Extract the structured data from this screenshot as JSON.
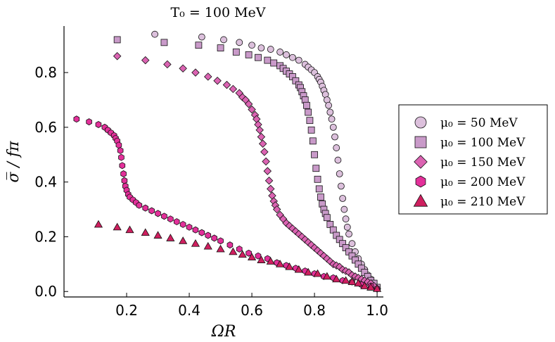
{
  "chart_data": {
    "type": "scatter",
    "title": "T₀ = 100 MeV",
    "xlabel": "ΩR",
    "ylabel": "σ̅ / fπ",
    "xlim": [
      0.0,
      1.02
    ],
    "ylim": [
      -0.02,
      0.97
    ],
    "xticks": [
      0.2,
      0.4,
      0.6,
      0.8,
      1.0
    ],
    "xtick_labels": [
      "0.2",
      "0.4",
      "0.6",
      "0.8",
      "1.0"
    ],
    "yticks": [
      0.0,
      0.2,
      0.4,
      0.6,
      0.8
    ],
    "ytick_labels": [
      "0.0",
      "0.2",
      "0.4",
      "0.6",
      "0.8"
    ],
    "grid": false,
    "legend_position": "right",
    "series": [
      {
        "name": "μ₀ = 50 MeV",
        "marker": "circle",
        "color": "#dcc0dc",
        "x": [
          0.29,
          0.44,
          0.51,
          0.56,
          0.6,
          0.63,
          0.66,
          0.69,
          0.71,
          0.73,
          0.75,
          0.77,
          0.78,
          0.79,
          0.8,
          0.81,
          0.815,
          0.82,
          0.825,
          0.83,
          0.835,
          0.84,
          0.845,
          0.85,
          0.855,
          0.86,
          0.865,
          0.87,
          0.875,
          0.88,
          0.885,
          0.89,
          0.895,
          0.9,
          0.905,
          0.91,
          0.92,
          0.93,
          0.94,
          0.95,
          0.96,
          0.97,
          0.98,
          0.99,
          1.0
        ],
        "y": [
          0.94,
          0.93,
          0.92,
          0.91,
          0.9,
          0.89,
          0.885,
          0.875,
          0.865,
          0.855,
          0.845,
          0.83,
          0.82,
          0.81,
          0.8,
          0.785,
          0.775,
          0.765,
          0.75,
          0.735,
          0.72,
          0.7,
          0.68,
          0.655,
          0.63,
          0.6,
          0.565,
          0.525,
          0.48,
          0.43,
          0.385,
          0.34,
          0.3,
          0.265,
          0.235,
          0.21,
          0.175,
          0.145,
          0.12,
          0.1,
          0.08,
          0.06,
          0.045,
          0.03,
          0.015
        ]
      },
      {
        "name": "μ₀ = 100 MeV",
        "marker": "square",
        "color": "#c99ac9",
        "x": [
          0.17,
          0.32,
          0.43,
          0.5,
          0.55,
          0.59,
          0.62,
          0.65,
          0.67,
          0.69,
          0.7,
          0.71,
          0.72,
          0.73,
          0.74,
          0.75,
          0.755,
          0.76,
          0.765,
          0.77,
          0.775,
          0.78,
          0.785,
          0.79,
          0.795,
          0.8,
          0.805,
          0.81,
          0.815,
          0.82,
          0.825,
          0.83,
          0.835,
          0.84,
          0.85,
          0.86,
          0.87,
          0.88,
          0.89,
          0.9,
          0.91,
          0.92,
          0.93,
          0.94,
          0.95,
          0.96,
          0.97,
          0.98,
          0.99,
          1.0
        ],
        "y": [
          0.92,
          0.91,
          0.9,
          0.89,
          0.875,
          0.865,
          0.855,
          0.845,
          0.835,
          0.825,
          0.815,
          0.805,
          0.795,
          0.785,
          0.77,
          0.755,
          0.745,
          0.73,
          0.715,
          0.7,
          0.68,
          0.655,
          0.625,
          0.59,
          0.55,
          0.5,
          0.45,
          0.41,
          0.375,
          0.345,
          0.32,
          0.3,
          0.285,
          0.27,
          0.245,
          0.225,
          0.205,
          0.19,
          0.175,
          0.16,
          0.145,
          0.13,
          0.115,
          0.1,
          0.085,
          0.07,
          0.055,
          0.04,
          0.03,
          0.015
        ]
      },
      {
        "name": "μ₀ = 150 MeV",
        "marker": "diamond",
        "color": "#db63b2",
        "x": [
          0.17,
          0.26,
          0.33,
          0.38,
          0.42,
          0.46,
          0.49,
          0.52,
          0.54,
          0.56,
          0.57,
          0.58,
          0.59,
          0.6,
          0.61,
          0.615,
          0.62,
          0.625,
          0.63,
          0.635,
          0.64,
          0.645,
          0.65,
          0.655,
          0.66,
          0.665,
          0.67,
          0.675,
          0.68,
          0.69,
          0.7,
          0.71,
          0.72,
          0.73,
          0.74,
          0.75,
          0.76,
          0.77,
          0.78,
          0.79,
          0.8,
          0.81,
          0.82,
          0.83,
          0.84,
          0.85,
          0.86,
          0.87,
          0.88,
          0.89,
          0.9,
          0.91,
          0.92,
          0.93,
          0.94,
          0.95,
          0.96,
          0.97,
          0.98,
          0.99,
          1.0
        ],
        "y": [
          0.86,
          0.845,
          0.83,
          0.815,
          0.8,
          0.785,
          0.77,
          0.755,
          0.74,
          0.725,
          0.71,
          0.7,
          0.685,
          0.665,
          0.645,
          0.63,
          0.61,
          0.59,
          0.565,
          0.54,
          0.51,
          0.475,
          0.44,
          0.405,
          0.375,
          0.35,
          0.33,
          0.315,
          0.3,
          0.28,
          0.265,
          0.25,
          0.24,
          0.23,
          0.22,
          0.21,
          0.2,
          0.19,
          0.18,
          0.17,
          0.16,
          0.15,
          0.14,
          0.13,
          0.12,
          0.11,
          0.1,
          0.095,
          0.09,
          0.08,
          0.075,
          0.07,
          0.06,
          0.055,
          0.05,
          0.045,
          0.04,
          0.035,
          0.03,
          0.02,
          0.01
        ]
      },
      {
        "name": "μ₀ = 200 MeV",
        "marker": "hexagon",
        "color": "#e3309a",
        "x": [
          0.04,
          0.08,
          0.11,
          0.13,
          0.14,
          0.15,
          0.16,
          0.165,
          0.17,
          0.175,
          0.18,
          0.183,
          0.186,
          0.19,
          0.193,
          0.196,
          0.2,
          0.205,
          0.21,
          0.22,
          0.23,
          0.24,
          0.26,
          0.28,
          0.3,
          0.32,
          0.34,
          0.36,
          0.38,
          0.4,
          0.42,
          0.44,
          0.46,
          0.48,
          0.5,
          0.53,
          0.56,
          0.59,
          0.62,
          0.65,
          0.68,
          0.71,
          0.74,
          0.77,
          0.8,
          0.83,
          0.86,
          0.89,
          0.92,
          0.95,
          0.98,
          1.0
        ],
        "y": [
          0.63,
          0.62,
          0.61,
          0.6,
          0.59,
          0.58,
          0.57,
          0.56,
          0.55,
          0.535,
          0.515,
          0.49,
          0.46,
          0.43,
          0.405,
          0.385,
          0.37,
          0.355,
          0.345,
          0.335,
          0.325,
          0.315,
          0.305,
          0.295,
          0.285,
          0.275,
          0.265,
          0.255,
          0.245,
          0.235,
          0.225,
          0.215,
          0.205,
          0.195,
          0.185,
          0.17,
          0.155,
          0.14,
          0.13,
          0.12,
          0.105,
          0.095,
          0.085,
          0.075,
          0.065,
          0.055,
          0.05,
          0.04,
          0.035,
          0.025,
          0.02,
          0.01
        ]
      },
      {
        "name": "μ₀ = 210 MeV",
        "marker": "triangle",
        "color": "#cf1f5f",
        "x": [
          0.11,
          0.17,
          0.21,
          0.26,
          0.3,
          0.34,
          0.38,
          0.42,
          0.46,
          0.5,
          0.54,
          0.57,
          0.6,
          0.63,
          0.66,
          0.69,
          0.72,
          0.75,
          0.78,
          0.81,
          0.84,
          0.87,
          0.9,
          0.92,
          0.94,
          0.96,
          0.98,
          1.0
        ],
        "y": [
          0.245,
          0.235,
          0.225,
          0.215,
          0.205,
          0.195,
          0.185,
          0.175,
          0.165,
          0.155,
          0.145,
          0.135,
          0.125,
          0.115,
          0.11,
          0.1,
          0.09,
          0.08,
          0.07,
          0.065,
          0.055,
          0.045,
          0.04,
          0.035,
          0.03,
          0.02,
          0.015,
          0.01
        ]
      }
    ]
  }
}
